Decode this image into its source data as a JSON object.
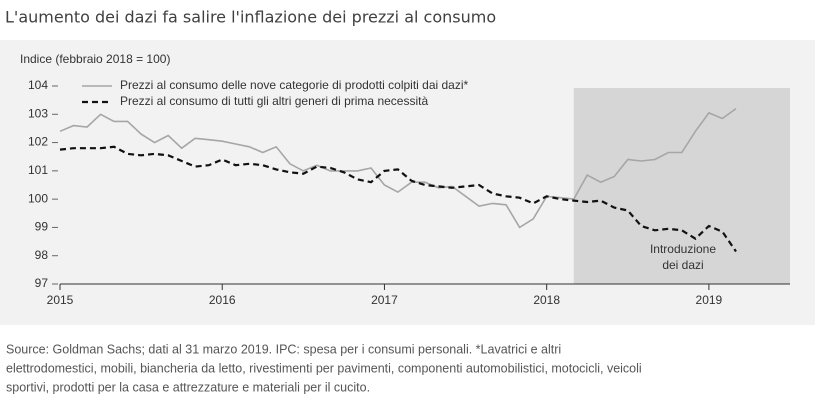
{
  "chart_data": {
    "type": "line",
    "title": "L'aumento dei dazi fa salire l'inflazione dei prezzi al consumo",
    "y_label": "Indice (febbraio 2018 = 100)",
    "source": [
      "Source: Goldman Sachs; dati al 31 marzo 2019. IPC: spesa per i consumi personali. *Lavatrici e altri",
      "elettrodomestici, mobili, biancheria da letto, rivestimenti per pavimenti, componenti automobilistici, motocicli, veicoli",
      "sportivi, prodotti per la casa e attrezzature e materiali per il cucito."
    ],
    "annotation": [
      "Introduzione",
      "dei dazi"
    ],
    "highlight_start": 2018.167,
    "highlight_color": "#d6d6d6",
    "x": [
      2015,
      2015.083,
      2015.167,
      2015.25,
      2015.333,
      2015.417,
      2015.5,
      2015.583,
      2015.667,
      2015.75,
      2015.833,
      2015.917,
      2016,
      2016.083,
      2016.167,
      2016.25,
      2016.333,
      2016.417,
      2016.5,
      2016.583,
      2016.667,
      2016.75,
      2016.833,
      2016.917,
      2017,
      2017.083,
      2017.167,
      2017.25,
      2017.333,
      2017.417,
      2017.5,
      2017.583,
      2017.667,
      2017.75,
      2017.833,
      2017.917,
      2018,
      2018.083,
      2018.167,
      2018.25,
      2018.333,
      2018.417,
      2018.5,
      2018.583,
      2018.667,
      2018.75,
      2018.833,
      2018.917,
      2019,
      2019.083,
      2019.167
    ],
    "series": [
      {
        "name": "Prezzi al consumo delle nove categorie di prodotti colpiti dai dazi*",
        "color": "#a6a6a6",
        "dash": false,
        "values": [
          102.4,
          102.6,
          102.55,
          103.0,
          102.75,
          102.75,
          102.3,
          102.0,
          102.25,
          101.8,
          102.15,
          102.1,
          102.05,
          101.95,
          101.85,
          101.65,
          101.85,
          101.25,
          101.0,
          101.2,
          101.0,
          101.0,
          101.0,
          101.1,
          100.5,
          100.25,
          100.6,
          100.6,
          100.4,
          100.45,
          100.1,
          99.75,
          99.85,
          99.8,
          99.0,
          99.3,
          100.1,
          100.05,
          100.0,
          100.85,
          100.6,
          100.8,
          101.4,
          101.35,
          101.4,
          101.65,
          101.65,
          102.4,
          103.05,
          102.85,
          103.2
        ]
      },
      {
        "name": "Prezzi al consumo di tutti gli altri generi di prima necessità",
        "color": "#111111",
        "dash": true,
        "values": [
          101.75,
          101.8,
          101.8,
          101.8,
          101.85,
          101.6,
          101.55,
          101.6,
          101.55,
          101.35,
          101.15,
          101.2,
          101.4,
          101.2,
          101.25,
          101.2,
          101.05,
          100.95,
          100.9,
          101.15,
          101.1,
          100.95,
          100.7,
          100.6,
          101.0,
          101.05,
          100.65,
          100.5,
          100.45,
          100.4,
          100.45,
          100.5,
          100.2,
          100.1,
          100.05,
          99.85,
          100.1,
          100.0,
          99.95,
          99.9,
          99.95,
          99.7,
          99.6,
          99.05,
          98.9,
          98.95,
          98.9,
          98.6,
          99.05,
          98.85,
          98.15
        ]
      }
    ],
    "xlim": [
      2015,
      2019.5
    ],
    "xticks": [
      2015,
      2016,
      2017,
      2018,
      2019
    ],
    "ylim": [
      97,
      104
    ],
    "yticks": [
      97,
      98,
      99,
      100,
      101,
      102,
      103,
      104
    ],
    "grid": false
  }
}
